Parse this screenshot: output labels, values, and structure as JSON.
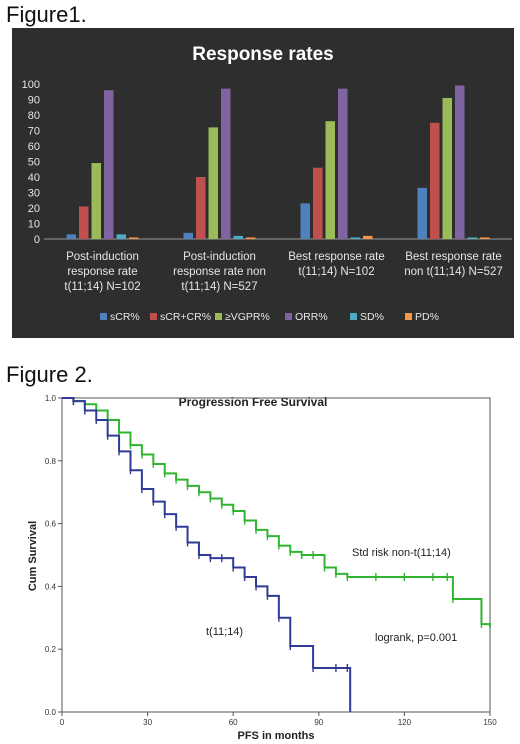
{
  "figure1_label": "Figure1.",
  "figure2_label": "Figure 2.",
  "chart_data": [
    {
      "type": "bar",
      "title": "Response  rates",
      "categories": [
        [
          "Post-induction",
          "response rate",
          "t(11;14) N=102"
        ],
        [
          "Post-induction",
          "response rate non",
          "t(11;14) N=527"
        ],
        [
          "Best response rate",
          "t(11;14) N=102"
        ],
        [
          "Best response rate",
          "non t(11;14) N=527"
        ]
      ],
      "series": [
        {
          "name": "sCR%",
          "color": "#4f81bd",
          "values": [
            3,
            4,
            23,
            33
          ]
        },
        {
          "name": "sCR+CR%",
          "color": "#c0504d",
          "values": [
            21,
            40,
            46,
            75
          ]
        },
        {
          "name": "≥VGPR%",
          "color": "#9bbb59",
          "values": [
            49,
            72,
            76,
            91
          ]
        },
        {
          "name": "ORR%",
          "color": "#8064a2",
          "values": [
            96,
            97,
            97,
            99
          ]
        },
        {
          "name": "SD%",
          "color": "#4bacc6",
          "values": [
            3,
            2,
            1,
            1
          ]
        },
        {
          "name": "PD%",
          "color": "#f79646",
          "values": [
            1,
            1,
            2,
            1
          ]
        }
      ],
      "ylim": [
        0,
        100
      ],
      "yticks": [
        0,
        10,
        20,
        30,
        40,
        50,
        60,
        70,
        80,
        90,
        100
      ],
      "legend": "bottom",
      "grid": false
    },
    {
      "type": "line",
      "title": "Progression Free Survival",
      "xlabel": "PFS in months",
      "ylabel": "Cum Survival",
      "xlim": [
        0,
        150
      ],
      "ylim": [
        0,
        1.0
      ],
      "xticks": [
        0,
        30,
        60,
        90,
        120,
        150
      ],
      "yticks": [
        "0.0",
        "0.2",
        "0.4",
        "0.6",
        "0.8",
        "1.0"
      ],
      "series": [
        {
          "label": "Std risk non-t(11;14)",
          "color": "#2fb52f",
          "x": [
            0,
            4,
            8,
            12,
            16,
            20,
            24,
            28,
            32,
            36,
            40,
            44,
            48,
            52,
            56,
            60,
            64,
            68,
            72,
            76,
            80,
            84,
            88,
            92,
            96,
            100,
            110,
            120,
            130,
            135,
            137,
            147,
            150
          ],
          "y": [
            1.0,
            0.99,
            0.98,
            0.96,
            0.93,
            0.89,
            0.85,
            0.82,
            0.79,
            0.76,
            0.74,
            0.72,
            0.7,
            0.68,
            0.66,
            0.64,
            0.61,
            0.58,
            0.56,
            0.53,
            0.51,
            0.5,
            0.5,
            0.46,
            0.44,
            0.43,
            0.43,
            0.43,
            0.43,
            0.43,
            0.36,
            0.28,
            0.27
          ]
        },
        {
          "label": "t(11;14)",
          "color": "#2f3b96",
          "x": [
            0,
            4,
            8,
            12,
            16,
            20,
            24,
            28,
            32,
            36,
            40,
            44,
            48,
            52,
            56,
            60,
            64,
            68,
            72,
            76,
            80,
            88,
            96,
            100,
            101
          ],
          "y": [
            1.0,
            0.99,
            0.96,
            0.93,
            0.88,
            0.83,
            0.77,
            0.71,
            0.67,
            0.63,
            0.59,
            0.54,
            0.5,
            0.49,
            0.49,
            0.46,
            0.43,
            0.4,
            0.37,
            0.3,
            0.21,
            0.14,
            0.14,
            0.14,
            0.0
          ]
        }
      ],
      "annotations": [
        "Std risk non-t(11;14)",
        "t(11;14)",
        "logrank, p=0.001"
      ]
    }
  ]
}
